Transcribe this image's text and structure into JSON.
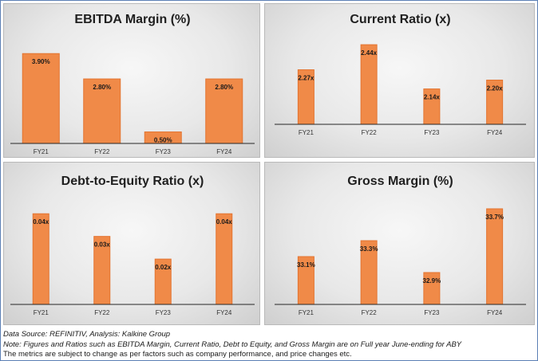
{
  "chart_data": [
    {
      "type": "bar",
      "title": "EBITDA Margin (%)",
      "categories": [
        "FY21",
        "FY22",
        "FY23",
        "FY24"
      ],
      "values": [
        3.9,
        2.8,
        0.5,
        2.8
      ],
      "labels": [
        "3.90%",
        "2.80%",
        "0.50%",
        "2.80%"
      ],
      "ylim": [
        0,
        4.6
      ],
      "grid": false,
      "legend": "none",
      "color": "#f08a48"
    },
    {
      "type": "bar",
      "title": "Current Ratio (x)",
      "categories": [
        "FY21",
        "FY22",
        "FY23",
        "FY24"
      ],
      "values": [
        2.27,
        2.44,
        2.14,
        2.2
      ],
      "labels": [
        "2.27x",
        "2.44x",
        "2.14x",
        "2.20x"
      ],
      "ylim": [
        1.9,
        2.5
      ],
      "grid": false,
      "legend": "none",
      "color": "#f08a48"
    },
    {
      "type": "bar",
      "title": "Debt-to-Equity Ratio (x)",
      "categories": [
        "FY21",
        "FY22",
        "FY23",
        "FY24"
      ],
      "values": [
        0.04,
        0.03,
        0.02,
        0.04
      ],
      "labels": [
        "0.04x",
        "0.03x",
        "0.02x",
        "0.04x"
      ],
      "ylim": [
        0,
        0.045
      ],
      "grid": false,
      "legend": "none",
      "color": "#f08a48"
    },
    {
      "type": "bar",
      "title": "Gross Margin (%)",
      "categories": [
        "FY21",
        "FY22",
        "FY23",
        "FY24"
      ],
      "values": [
        33.1,
        33.3,
        32.9,
        33.7
      ],
      "labels": [
        "33.1%",
        "33.3%",
        "32.9%",
        "33.7%"
      ],
      "ylim": [
        32.5,
        33.8
      ],
      "grid": false,
      "legend": "none",
      "color": "#f08a48"
    }
  ],
  "footer": {
    "source": "Data Source: REFINITIV, Analysis: Kalkine Group",
    "note": "Note: Figures and Ratios such as EBITDA Margin, Current Ratio, Debt to Equity, and Gross Margin are on Full year June-ending for ABY",
    "disclaimer": "The metrics are subject to change as per factors such as company performance, and price changes etc."
  }
}
